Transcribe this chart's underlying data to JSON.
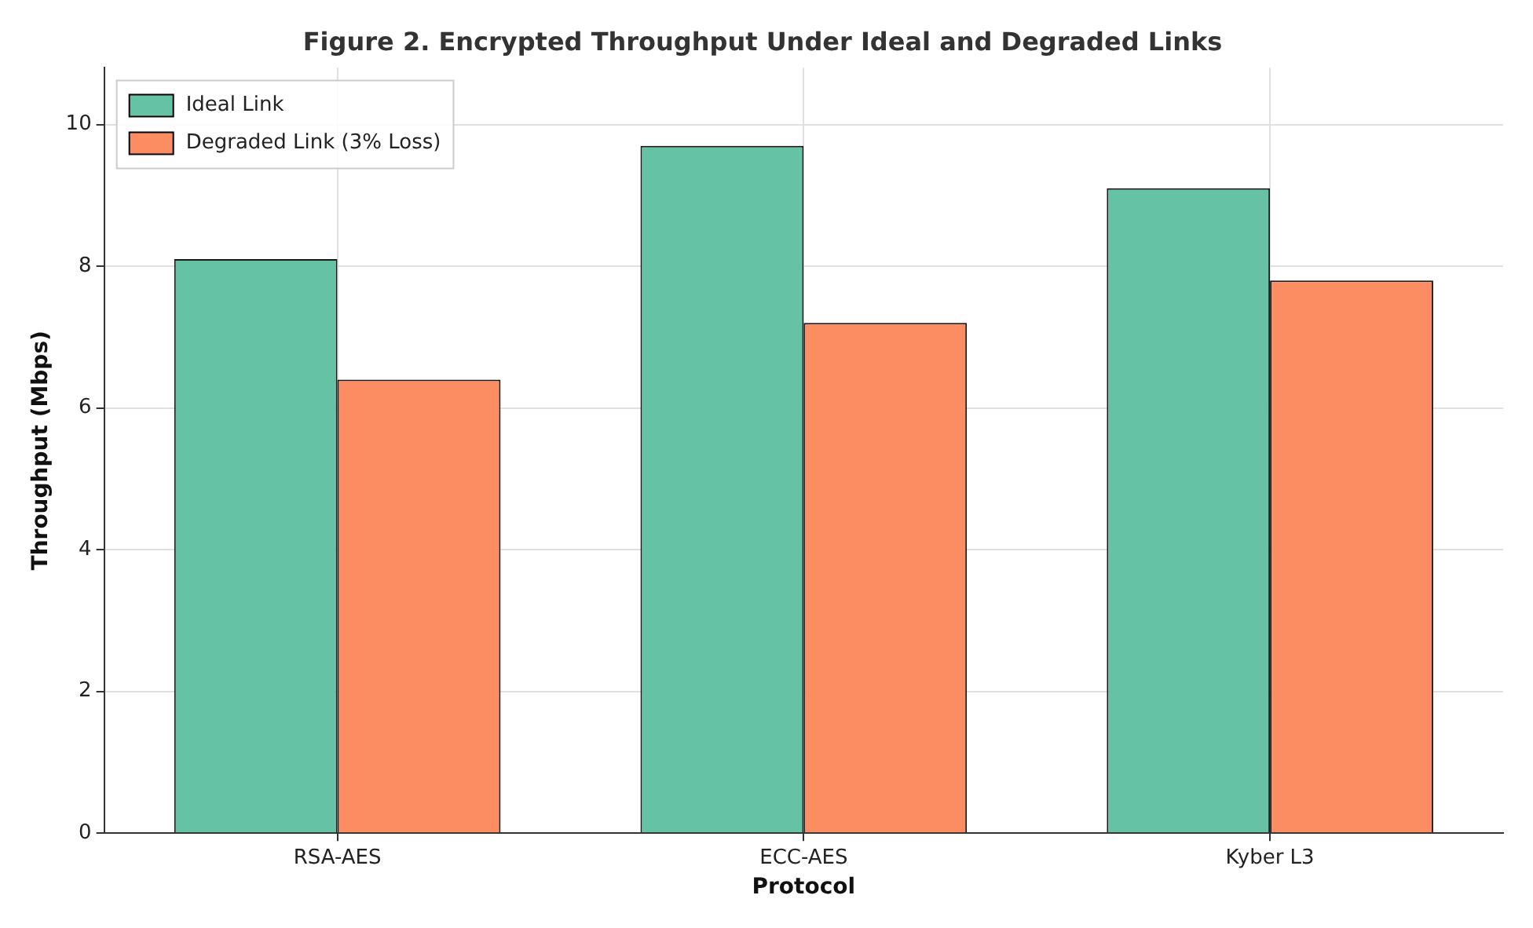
{
  "chart_data": {
    "type": "bar",
    "title": "Figure 2. Encrypted Throughput Under Ideal and Degraded Links",
    "xlabel": "Protocol",
    "ylabel": "Throughput (Mbps)",
    "categories": [
      "RSA-AES",
      "ECC-AES",
      "Kyber L3"
    ],
    "series": [
      {
        "name": "Ideal Link",
        "color": "#66c2a5",
        "values": [
          8.1,
          9.7,
          9.1
        ]
      },
      {
        "name": "Degraded Link (3% Loss)",
        "color": "#fc8d62",
        "values": [
          6.4,
          7.2,
          7.8
        ]
      }
    ],
    "ylim": [
      0,
      10.8
    ],
    "yticks": [
      0,
      2,
      4,
      6,
      8,
      10
    ],
    "grid": true,
    "legend": "top left"
  }
}
